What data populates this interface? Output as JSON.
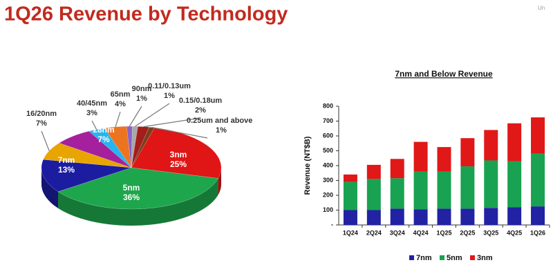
{
  "title": "1Q26 Revenue by Technology",
  "note": "Un",
  "chart_data": [
    {
      "type": "pie",
      "categories": [
        "3nm",
        "5nm",
        "7nm",
        "16/20nm",
        "28nm",
        "40/45nm",
        "65nm",
        "90nm",
        "0.11/0.13um",
        "0.15/0.18um",
        "0.25um and above"
      ],
      "values": [
        25,
        36,
        13,
        7,
        7,
        3,
        4,
        1,
        1,
        2,
        1
      ],
      "value_labels": [
        "25%",
        "36%",
        "13%",
        "7%",
        "7%",
        "3%",
        "4%",
        "1%",
        "1%",
        "2%",
        "1%"
      ],
      "colors": [
        "#e01515",
        "#1ea64c",
        "#1c1ca0",
        "#e8a400",
        "#a4209c",
        "#28b4ee",
        "#ec7420",
        "#8a62c8",
        "#a8a8a8",
        "#a41c1c",
        "#7a3e1c"
      ]
    },
    {
      "type": "bar",
      "stacked": true,
      "title": "7nm and Below Revenue",
      "y_label": "Revenue (NT$B)",
      "categories": [
        "1Q24",
        "2Q24",
        "3Q24",
        "4Q24",
        "1Q25",
        "2Q25",
        "3Q25",
        "4Q25",
        "1Q26"
      ],
      "series": [
        {
          "name": "7nm",
          "color": "#2222a4",
          "values": [
            100,
            100,
            110,
            105,
            110,
            110,
            115,
            120,
            125
          ]
        },
        {
          "name": "5nm",
          "color": "#19a251",
          "values": [
            190,
            210,
            205,
            255,
            250,
            285,
            320,
            310,
            355
          ]
        },
        {
          "name": "3nm",
          "color": "#e01818",
          "values": [
            50,
            95,
            130,
            200,
            165,
            190,
            205,
            255,
            245
          ]
        }
      ],
      "ylim": [
        0,
        800
      ],
      "yticks": [
        {
          "value": 0,
          "label": "-"
        },
        100,
        200,
        300,
        400,
        500,
        600,
        700,
        800
      ],
      "legend": "bottom"
    }
  ]
}
